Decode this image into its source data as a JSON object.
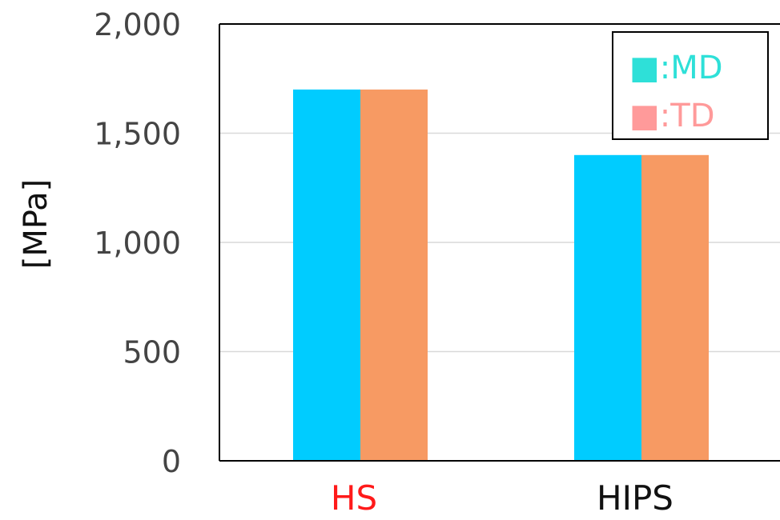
{
  "chart_data": {
    "type": "bar",
    "categories": [
      "HS",
      "HIPS"
    ],
    "category_label_colors": [
      "#ff1a1a",
      "#111111"
    ],
    "series": [
      {
        "name": ":MD",
        "values": [
          1700,
          1400
        ],
        "color": "#00ccff"
      },
      {
        "name": ":TD",
        "values": [
          1700,
          1400
        ],
        "color": "#f79a63"
      }
    ],
    "legend": {
      "position": "top-right",
      "marker": "■",
      "entries": [
        {
          "label": ":MD",
          "color": "#2ee0d8"
        },
        {
          "label": ":TD",
          "color": "#ff9a9a"
        }
      ]
    },
    "ylabel": "[MPa]",
    "ylim": [
      0,
      2000
    ],
    "yticks": [
      0,
      500,
      1000,
      1500,
      2000
    ],
    "ytick_labels": [
      "0",
      "500",
      "1,000",
      "1,500",
      "2,000"
    ],
    "grid": true,
    "gridline_color": "#d9d9d9"
  }
}
